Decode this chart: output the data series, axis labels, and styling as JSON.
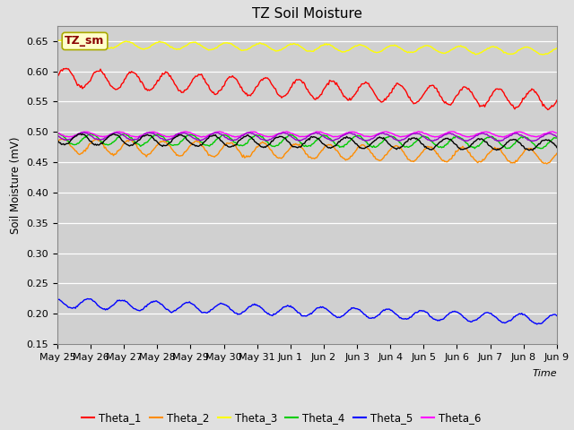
{
  "title": "TZ Soil Moisture",
  "ylabel": "Soil Moisture (mV)",
  "xlabel": "Time",
  "ylim": [
    0.15,
    0.675
  ],
  "yticks": [
    0.15,
    0.2,
    0.25,
    0.3,
    0.35,
    0.4,
    0.45,
    0.5,
    0.55,
    0.6,
    0.65
  ],
  "n_points": 500,
  "date_labels": [
    "May 25",
    "May 26",
    "May 27",
    "May 28",
    "May 29",
    "May 30",
    "May 31",
    "Jun 1",
    "Jun 2",
    "Jun 3",
    "Jun 4",
    "Jun 5",
    "Jun 6",
    "Jun 7",
    "Jun 8",
    "Jun 9"
  ],
  "series": {
    "Theta_1": {
      "color": "#ff0000",
      "base": 0.59,
      "trend": -0.038,
      "amp": 0.015,
      "freq": 15,
      "phase": 0.0
    },
    "Theta_2": {
      "color": "#ff8c00",
      "base": 0.477,
      "trend": -0.018,
      "amp": 0.012,
      "freq": 15,
      "phase": 0.5
    },
    "Theta_3": {
      "color": "#ffff00",
      "base": 0.645,
      "trend": -0.012,
      "amp": 0.006,
      "freq": 15,
      "phase": 1.0
    },
    "Theta_4": {
      "color": "#00cc00",
      "base": 0.488,
      "trend": -0.006,
      "amp": 0.009,
      "freq": 15,
      "phase": 1.5
    },
    "Theta_5": {
      "color": "#0000ff",
      "base": 0.218,
      "trend": -0.028,
      "amp": 0.008,
      "freq": 15,
      "phase": 2.0
    },
    "Theta_6": {
      "color": "#ff00ff",
      "base": 0.496,
      "trend": 0.0,
      "amp": 0.004,
      "freq": 15,
      "phase": 2.5
    },
    "Theta_7": {
      "color": "#9900cc",
      "base": 0.493,
      "trend": -0.002,
      "amp": 0.006,
      "freq": 15,
      "phase": 3.0
    },
    "Theta_avg": {
      "color": "#000000",
      "base": 0.488,
      "trend": -0.01,
      "amp": 0.009,
      "freq": 15,
      "phase": 3.5
    }
  },
  "legend_label_box": "TZ_sm",
  "background_color": "#e0e0e0",
  "plot_bg_color": "#d0d0d0",
  "title_fontsize": 11,
  "tick_fontsize": 8,
  "legend_fontsize": 8.5
}
